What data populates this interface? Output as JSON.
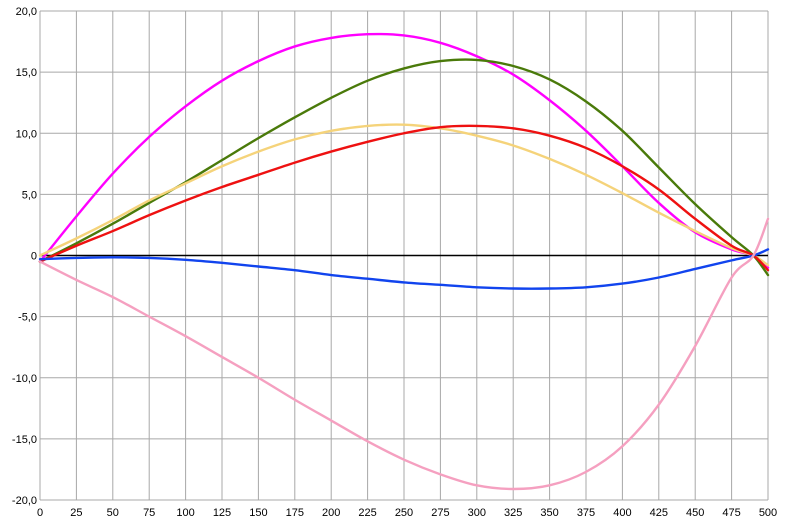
{
  "chart_data": {
    "type": "line",
    "title": "",
    "xlabel": "",
    "ylabel": "",
    "xlim": [
      0,
      500
    ],
    "ylim": [
      -20,
      20
    ],
    "x_ticks": [
      0,
      25,
      50,
      75,
      100,
      125,
      150,
      175,
      200,
      225,
      250,
      275,
      300,
      325,
      350,
      375,
      400,
      425,
      450,
      475,
      500
    ],
    "x_tick_labels": [
      "0",
      "25",
      "50",
      "75",
      "100",
      "125",
      "150",
      "175",
      "200",
      "225",
      "250",
      "275",
      "300",
      "325",
      "350",
      "375",
      "400",
      "425",
      "450",
      "475",
      "500"
    ],
    "y_ticks": [
      20,
      15,
      10,
      5,
      0,
      -5,
      -10,
      -15,
      -20
    ],
    "y_tick_labels": [
      "20,0",
      "15,0",
      "10,0",
      "5,0",
      "0",
      "-5,0",
      "-10,0",
      "-15,0",
      "-20,0"
    ],
    "grid": true,
    "legend": "none",
    "x": [
      0,
      25,
      50,
      75,
      100,
      125,
      150,
      175,
      200,
      225,
      250,
      275,
      300,
      325,
      350,
      375,
      400,
      425,
      450,
      475,
      490,
      500
    ],
    "series": [
      {
        "color": "#ff00ff",
        "values": [
          -0.5,
          3.2,
          6.7,
          9.7,
          12.2,
          14.3,
          15.9,
          17.1,
          17.8,
          18.1,
          18.0,
          17.4,
          16.3,
          14.8,
          12.7,
          10.2,
          7.3,
          4.3,
          1.9,
          0.5,
          0.0,
          -1.0
        ]
      },
      {
        "color": "#4a7a0a",
        "values": [
          -0.5,
          1.0,
          2.6,
          4.3,
          6.0,
          7.8,
          9.6,
          11.3,
          12.9,
          14.3,
          15.3,
          15.9,
          16.0,
          15.5,
          14.4,
          12.6,
          10.2,
          7.2,
          4.2,
          1.5,
          0.0,
          -1.6
        ]
      },
      {
        "color": "#f5d37a",
        "values": [
          0.0,
          1.4,
          2.9,
          4.5,
          5.9,
          7.3,
          8.5,
          9.5,
          10.2,
          10.6,
          10.7,
          10.4,
          9.8,
          9.0,
          7.9,
          6.6,
          5.1,
          3.5,
          2.0,
          0.6,
          0.0,
          -0.8
        ]
      },
      {
        "color": "#ee1111",
        "values": [
          -0.5,
          0.8,
          2.0,
          3.3,
          4.5,
          5.6,
          6.6,
          7.6,
          8.5,
          9.3,
          10.0,
          10.5,
          10.6,
          10.4,
          9.8,
          8.8,
          7.3,
          5.4,
          3.0,
          0.8,
          0.0,
          -1.2
        ]
      },
      {
        "color": "#1144ee",
        "values": [
          -0.3,
          -0.2,
          -0.15,
          -0.2,
          -0.35,
          -0.6,
          -0.9,
          -1.2,
          -1.6,
          -1.9,
          -2.2,
          -2.4,
          -2.6,
          -2.7,
          -2.7,
          -2.6,
          -2.3,
          -1.8,
          -1.1,
          -0.4,
          0.0,
          0.5
        ]
      },
      {
        "color": "#f5a0c0",
        "values": [
          -0.5,
          -2.0,
          -3.4,
          -5.0,
          -6.6,
          -8.3,
          -10.0,
          -11.8,
          -13.5,
          -15.2,
          -16.7,
          -17.9,
          -18.8,
          -19.1,
          -18.8,
          -17.7,
          -15.6,
          -12.2,
          -7.4,
          -1.8,
          0.0,
          3.0
        ]
      }
    ]
  }
}
